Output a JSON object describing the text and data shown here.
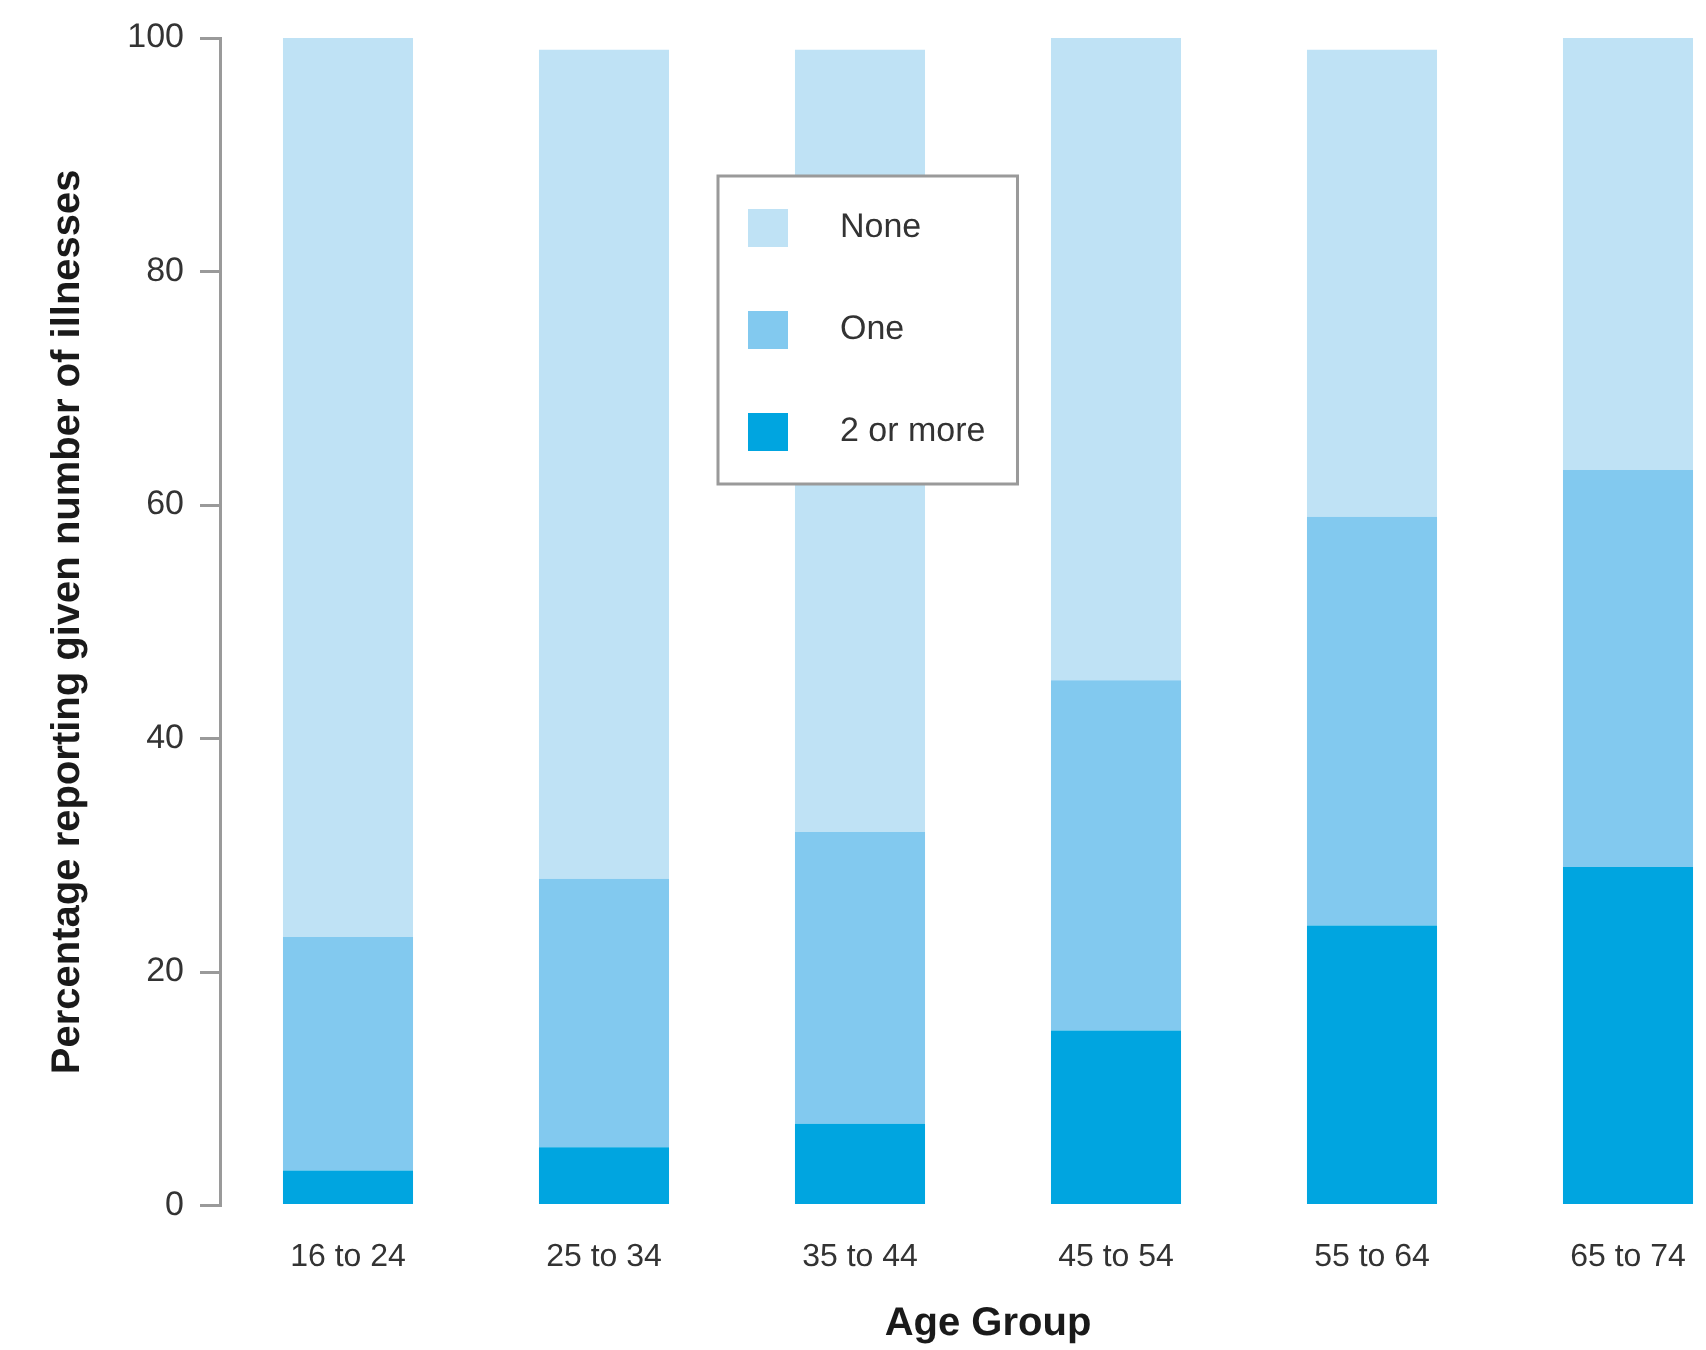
{
  "chart_data": {
    "type": "bar",
    "stacked": true,
    "categories": [
      "16 to 24",
      "25 to 34",
      "35 to 44",
      "45 to 54",
      "55 to 64",
      "65 to 74"
    ],
    "series": [
      {
        "name": "2 or more",
        "color": "#00a5e0",
        "values": [
          3,
          5,
          7,
          15,
          24,
          29
        ]
      },
      {
        "name": "One",
        "color": "#82c9ef",
        "values": [
          20,
          23,
          25,
          30,
          35,
          34
        ]
      },
      {
        "name": "None",
        "color": "#bfe2f5",
        "values": [
          77,
          71,
          67,
          55,
          40,
          37
        ]
      }
    ],
    "xlabel": "Age Group",
    "ylabel": "Percentage reporting given number of illnesses",
    "ylim": [
      0,
      100
    ],
    "yticks": [
      0,
      20,
      40,
      60,
      80,
      100
    ],
    "legend": "top",
    "grid": false
  }
}
